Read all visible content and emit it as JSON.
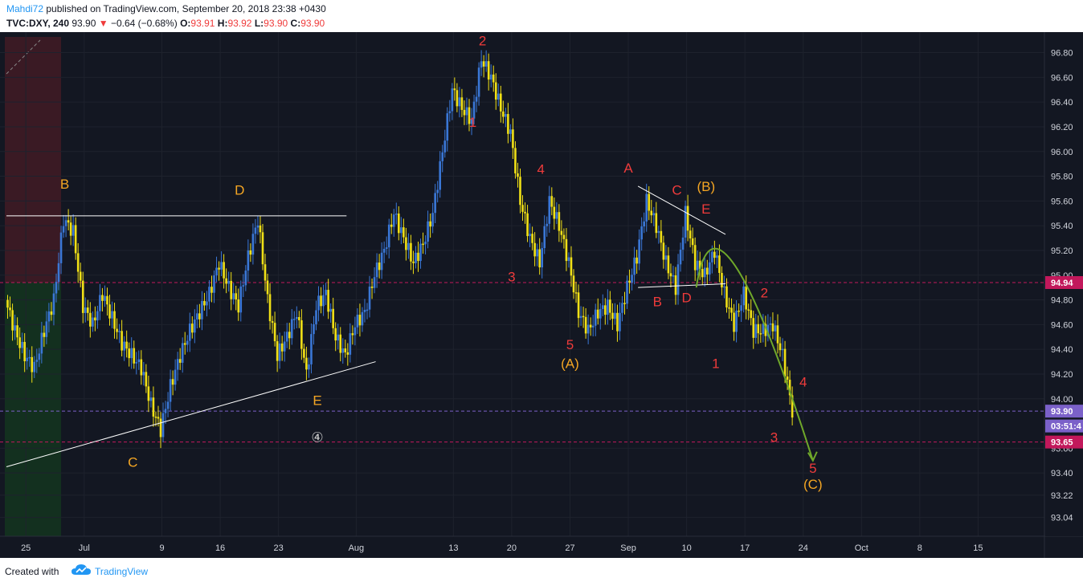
{
  "header": {
    "author": "Mahdi72",
    "published_text": "published on TradingView.com, September 20, 2018 23:38 +0430",
    "symbol": "TVC:DXY, 240",
    "last": "93.90",
    "change_arrow": "▼",
    "change": "−0.64 (−0.68%)",
    "o_label": "O:",
    "o": "93.91",
    "h_label": "H:",
    "h": "93.92",
    "l_label": "L:",
    "l": "93.90",
    "c_label": "C:",
    "c": "93.90"
  },
  "footer": {
    "created_with": "Created with",
    "brand": "TradingView",
    "logo_icon": "tradingview-cloud-icon"
  },
  "chart_data": {
    "type": "candlestick",
    "symbol": "TVC:DXY",
    "interval": "240",
    "colors": {
      "up": "#3a77d6",
      "down": "#f0e016",
      "background": "#131722",
      "last_price": "#7b61c9",
      "level": "#c2185b"
    },
    "y_axis": {
      "range": [
        92.94,
        96.94
      ],
      "ticks": [
        "96.80",
        "96.60",
        "96.40",
        "96.20",
        "96.00",
        "95.80",
        "95.60",
        "95.40",
        "95.20",
        "95.00",
        "94.80",
        "94.60",
        "94.40",
        "94.20",
        "94.00",
        "93.60",
        "93.40",
        "93.22",
        "93.04"
      ]
    },
    "x_axis": {
      "range": [
        0,
        106
      ],
      "ticks": [
        {
          "label": "25",
          "x": 2
        },
        {
          "label": "Jul",
          "x": 8
        },
        {
          "label": "9",
          "x": 16
        },
        {
          "label": "16",
          "x": 22
        },
        {
          "label": "23",
          "x": 28
        },
        {
          "label": "Aug",
          "x": 36
        },
        {
          "label": "13",
          "x": 46
        },
        {
          "label": "20",
          "x": 52
        },
        {
          "label": "27",
          "x": 58
        },
        {
          "label": "Sep",
          "x": 64
        },
        {
          "label": "10",
          "x": 70
        },
        {
          "label": "17",
          "x": 76
        },
        {
          "label": "24",
          "x": 82
        },
        {
          "label": "Oct",
          "x": 88
        },
        {
          "label": "8",
          "x": 94
        },
        {
          "label": "15",
          "x": 100
        }
      ]
    },
    "price_labels": [
      {
        "value": "94.94",
        "price": 94.94,
        "color": "#c2185b"
      },
      {
        "value": "93.90",
        "price": 93.9,
        "color": "#7b61c9"
      },
      {
        "value": "03:51:4",
        "price": 93.78,
        "color": "#7b61c9"
      },
      {
        "value": "93.65",
        "price": 93.65,
        "color": "#c2185b"
      }
    ],
    "path": [
      [
        0,
        94.8
      ],
      [
        1,
        94.55
      ],
      [
        2,
        94.35
      ],
      [
        3,
        94.25
      ],
      [
        4,
        94.55
      ],
      [
        5,
        94.8
      ],
      [
        6,
        95.45
      ],
      [
        7,
        95.35
      ],
      [
        8,
        94.75
      ],
      [
        9,
        94.6
      ],
      [
        10,
        94.85
      ],
      [
        11,
        94.65
      ],
      [
        12,
        94.45
      ],
      [
        13,
        94.35
      ],
      [
        14,
        94.25
      ],
      [
        15,
        93.95
      ],
      [
        16,
        93.75
      ],
      [
        17,
        94.1
      ],
      [
        18,
        94.35
      ],
      [
        19,
        94.55
      ],
      [
        20,
        94.7
      ],
      [
        21,
        94.85
      ],
      [
        22,
        95.1
      ],
      [
        23,
        94.9
      ],
      [
        24,
        94.75
      ],
      [
        25,
        95.15
      ],
      [
        26,
        95.45
      ],
      [
        27,
        94.8
      ],
      [
        28,
        94.35
      ],
      [
        29,
        94.5
      ],
      [
        30,
        94.7
      ],
      [
        31,
        94.2
      ],
      [
        32,
        94.75
      ],
      [
        33,
        94.85
      ],
      [
        34,
        94.5
      ],
      [
        35,
        94.35
      ],
      [
        36,
        94.6
      ],
      [
        37,
        94.7
      ],
      [
        38,
        95.0
      ],
      [
        39,
        95.2
      ],
      [
        40,
        95.5
      ],
      [
        41,
        95.3
      ],
      [
        42,
        95.1
      ],
      [
        43,
        95.25
      ],
      [
        44,
        95.5
      ],
      [
        45,
        96.0
      ],
      [
        46,
        96.5
      ],
      [
        47,
        96.35
      ],
      [
        48,
        96.25
      ],
      [
        49,
        96.75
      ],
      [
        50,
        96.6
      ],
      [
        51,
        96.35
      ],
      [
        52,
        96.15
      ],
      [
        53,
        95.6
      ],
      [
        54,
        95.3
      ],
      [
        55,
        95.1
      ],
      [
        56,
        95.6
      ],
      [
        57,
        95.4
      ],
      [
        58,
        95.1
      ],
      [
        59,
        94.7
      ],
      [
        60,
        94.55
      ],
      [
        61,
        94.7
      ],
      [
        62,
        94.75
      ],
      [
        63,
        94.6
      ],
      [
        64,
        94.9
      ],
      [
        65,
        95.15
      ],
      [
        66,
        95.6
      ],
      [
        67,
        95.4
      ],
      [
        68,
        95.1
      ],
      [
        69,
        94.9
      ],
      [
        70,
        95.5
      ],
      [
        71,
        95.1
      ],
      [
        72,
        95.0
      ],
      [
        73,
        95.2
      ],
      [
        74,
        94.85
      ],
      [
        75,
        94.6
      ],
      [
        76,
        94.85
      ],
      [
        77,
        94.55
      ],
      [
        78,
        94.55
      ],
      [
        79,
        94.6
      ],
      [
        80,
        94.35
      ],
      [
        81,
        93.9
      ]
    ],
    "trendlines": [
      {
        "from": [
          0,
          93.45
        ],
        "to": [
          38,
          94.3
        ],
        "color": "#ffffff"
      },
      {
        "from": [
          0,
          95.48
        ],
        "to": [
          35,
          95.48
        ],
        "color": "#ffffff"
      },
      {
        "from": [
          65,
          95.72
        ],
        "to": [
          74,
          95.33
        ],
        "color": "#ffffff"
      },
      {
        "from": [
          65,
          94.9
        ],
        "to": [
          74,
          94.93
        ],
        "color": "#ffffff"
      }
    ],
    "projection": {
      "from": [
        71,
        94.9
      ],
      "ctrl": [
        73,
        95.95
      ],
      "to": [
        83,
        93.5
      ],
      "color": "#6fa82a"
    },
    "annotations": [
      {
        "text": "B",
        "x": 6,
        "price": 95.7,
        "color": "#f5a623"
      },
      {
        "text": "C",
        "x": 13,
        "price": 93.45,
        "color": "#f5a623"
      },
      {
        "text": "D",
        "x": 24,
        "price": 95.65,
        "color": "#f5a623"
      },
      {
        "text": "E",
        "x": 32,
        "price": 93.95,
        "color": "#f5a623"
      },
      {
        "text": "④",
        "x": 32,
        "price": 93.65,
        "color": "#cccccc"
      },
      {
        "text": "2",
        "x": 49,
        "price": 96.86,
        "color": "#ef3b3b"
      },
      {
        "text": "1",
        "x": 48,
        "price": 96.2,
        "color": "#ef3b3b"
      },
      {
        "text": "3",
        "x": 52,
        "price": 94.95,
        "color": "#ef3b3b"
      },
      {
        "text": "4",
        "x": 55,
        "price": 95.82,
        "color": "#ef3b3b"
      },
      {
        "text": "5",
        "x": 58,
        "price": 94.4,
        "color": "#ef3b3b"
      },
      {
        "text": "(A)",
        "x": 58,
        "price": 94.25,
        "color": "#f5a623"
      },
      {
        "text": "A",
        "x": 64,
        "price": 95.83,
        "color": "#ef3b3b"
      },
      {
        "text": "C",
        "x": 69,
        "price": 95.65,
        "color": "#ef3b3b"
      },
      {
        "text": "(B)",
        "x": 72,
        "price": 95.68,
        "color": "#f5a623"
      },
      {
        "text": "E",
        "x": 72,
        "price": 95.5,
        "color": "#ef3b3b"
      },
      {
        "text": "B",
        "x": 67,
        "price": 94.75,
        "color": "#ef3b3b"
      },
      {
        "text": "D",
        "x": 70,
        "price": 94.78,
        "color": "#ef3b3b"
      },
      {
        "text": "2",
        "x": 78,
        "price": 94.82,
        "color": "#ef3b3b"
      },
      {
        "text": "1",
        "x": 73,
        "price": 94.25,
        "color": "#ef3b3b"
      },
      {
        "text": "4",
        "x": 82,
        "price": 94.1,
        "color": "#ef3b3b"
      },
      {
        "text": "3",
        "x": 79,
        "price": 93.65,
        "color": "#ef3b3b"
      },
      {
        "text": "5",
        "x": 83,
        "price": 93.4,
        "color": "#ef3b3b"
      },
      {
        "text": "(C)",
        "x": 83,
        "price": 93.27,
        "color": "#f5a623"
      }
    ]
  }
}
